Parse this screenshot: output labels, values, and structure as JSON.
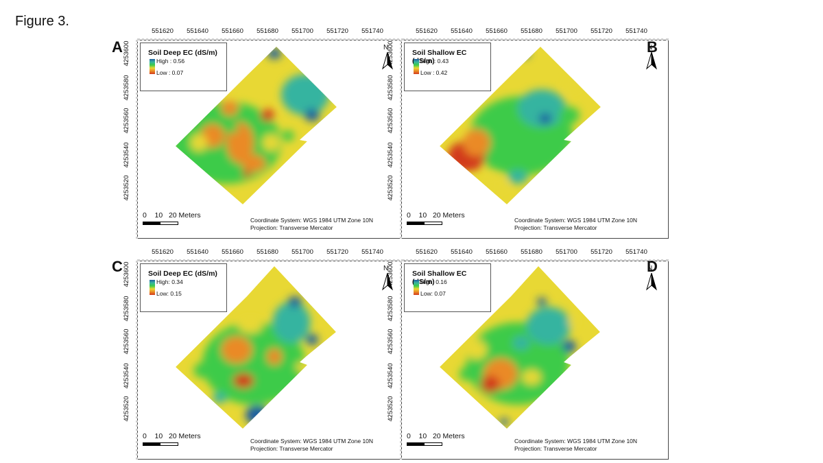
{
  "figure_label": "Figure 3.",
  "x_ticks": [
    "551620",
    "551640",
    "551660",
    "551680",
    "551700",
    "551720",
    "551740"
  ],
  "y_ticks": [
    "4253600",
    "4253580",
    "4253560",
    "4253540",
    "4253520"
  ],
  "north_label": "N",
  "scale_label": "0    10   20 Meters",
  "coordinate_system": "Coordinate System: WGS 1984 UTM Zone 10N",
  "projection": "Projection: Transverse Mercator",
  "panels": [
    {
      "letter": "A",
      "title": "Soil Deep EC (dS/m)",
      "high": "High : 0.56",
      "low": "Low : 0.07"
    },
    {
      "letter": "B",
      "title": "Soil Shallow EC (dS/m)",
      "high": "High : 0.43",
      "low": "Low : 0.42"
    },
    {
      "letter": "C",
      "title": "Soil Deep EC (dS/m)",
      "high": "High: 0.34",
      "low": "Low: 0.15"
    },
    {
      "letter": "D",
      "title": "Soil Shallow EC (dS/m)",
      "high": "High: 0.16",
      "low": "Low: 0.07"
    }
  ],
  "colors": {
    "high": "#1f5fa0",
    "mid_high": "#36b4a0",
    "mid": "#3ccb4a",
    "mid_low": "#e8d834",
    "low": "#ea8a25",
    "lowest": "#d23a1f"
  }
}
